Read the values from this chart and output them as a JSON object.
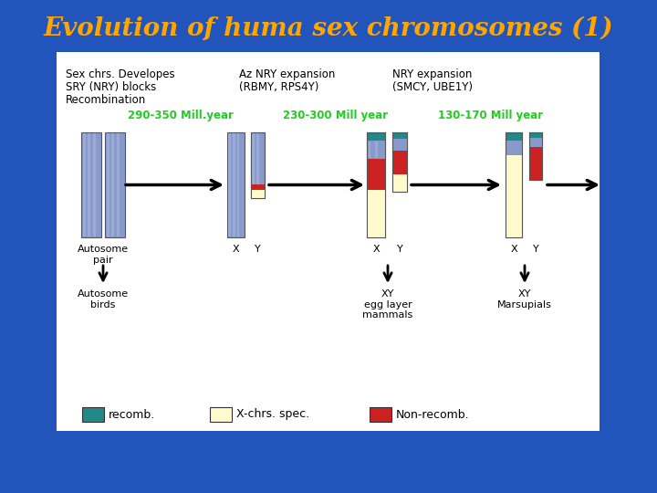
{
  "title": "Evolution of huma sex chromosomes (1)",
  "title_color": "#FFA500",
  "title_fontsize": 20,
  "bg_color": "#2255BB",
  "panel_bg": "#FFFFFF",
  "header_col1": [
    "Sex chrs. Developes",
    "SRY (NRY) blocks",
    "Recombination"
  ],
  "header_col2": [
    "Az NRY expansion",
    "(RBMY, RPS4Y)",
    ""
  ],
  "header_col3": [
    "NRY expansion",
    "(SMCY, UBE1Y)",
    ""
  ],
  "time_labels": [
    "290-350 Mill.year",
    "230-300 Mill year",
    "130-170 Mill year"
  ],
  "time_color": "#22CC22",
  "chrom_blue": "#8899CC",
  "chrom_stripe": "#AABCDD",
  "chrom_teal": "#228888",
  "chrom_cream": "#FFFACC",
  "chrom_red": "#CC2222",
  "chrom_darkblue": "#445588",
  "legend_teal": "#228888",
  "legend_cream": "#FFFACC",
  "legend_red": "#CC2222"
}
